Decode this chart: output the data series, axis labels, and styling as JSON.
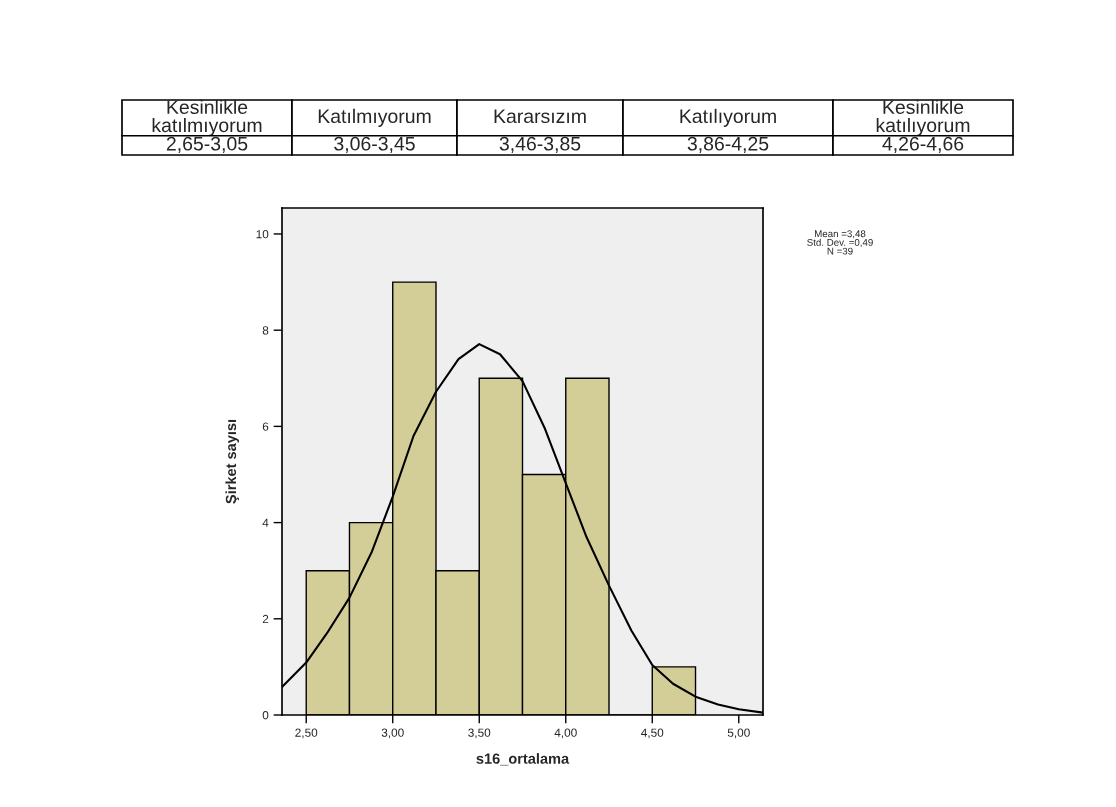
{
  "chart_data": {
    "type": "histogram",
    "xlabel": "s16_ortalama",
    "ylabel": "Şirket sayısı",
    "bins": [
      2.5,
      2.75,
      3.0,
      3.25,
      3.5,
      3.75,
      4.0,
      4.25,
      4.5,
      4.75
    ],
    "values": [
      3,
      4,
      9,
      3,
      7,
      5,
      7,
      0,
      1
    ],
    "color": "#d3ce97",
    "series": [
      {
        "type": "line",
        "color": "#000000",
        "x": [
          2.36,
          2.5,
          2.62,
          2.75,
          2.88,
          3.0,
          3.12,
          3.25,
          3.38,
          3.5,
          3.62,
          3.75,
          3.88,
          4.0,
          4.12,
          4.25,
          4.38,
          4.5,
          4.62,
          4.75,
          4.88,
          5.0,
          5.14
        ],
        "values": [
          0.58,
          1.09,
          1.7,
          2.44,
          3.4,
          4.54,
          5.8,
          6.72,
          7.4,
          7.71,
          7.5,
          6.94,
          5.95,
          4.82,
          3.7,
          2.69,
          1.75,
          1.04,
          0.65,
          0.38,
          0.22,
          0.12,
          0.05
        ]
      }
    ],
    "xlim": [
      2.36,
      5.14
    ],
    "ylim": [
      0,
      10.54
    ],
    "xticks": [
      {
        "value": 2.5,
        "label": "2,50"
      },
      {
        "value": 3.0,
        "label": "3,00"
      },
      {
        "value": 3.5,
        "label": "3,50"
      },
      {
        "value": 4.0,
        "label": "4,00"
      },
      {
        "value": 4.5,
        "label": "4,50"
      },
      {
        "value": 5.0,
        "label": "5,00"
      }
    ],
    "yticks": [
      0,
      2,
      4,
      6,
      8,
      10
    ],
    "grid": false,
    "legend": false,
    "annotations": [
      "Kesinlikle\nkatılmıyorum",
      "Katılmıyorum",
      "Kararsızım",
      "Katılıyorum",
      "Kesinlikle\nkatılıyorum",
      "2,65-3,05",
      "3,06-3,45",
      "3,46-3,85",
      "3,86-4,25",
      "4,26-4,66",
      "Mean =3,48\nStd. Dev. =0,49\nN =39"
    ]
  }
}
